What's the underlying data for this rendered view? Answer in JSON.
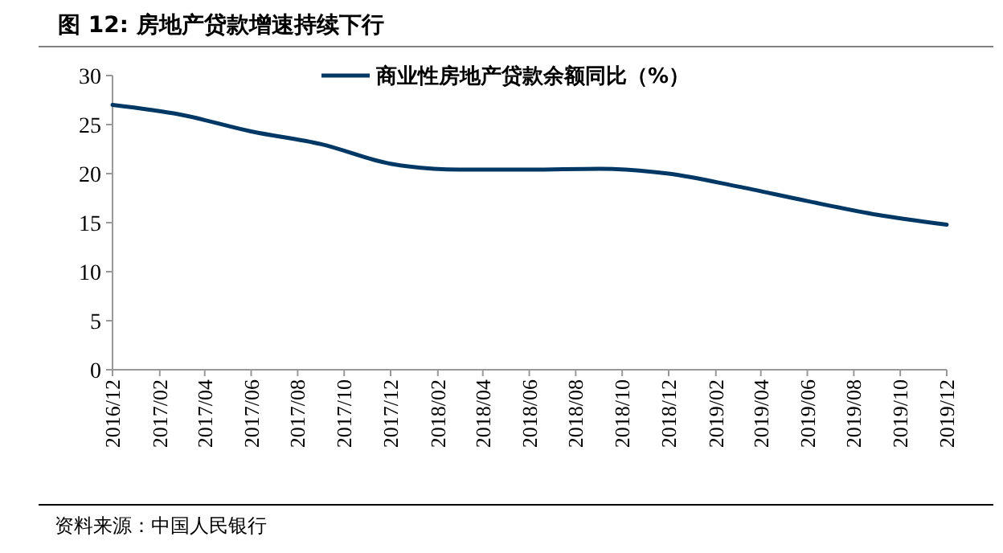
{
  "chart_data": {
    "type": "line",
    "title": "图 12:  房地产贷款增速持续下行",
    "annotations": [
      "资料来源：中国人民银行"
    ],
    "x": [
      "2016-12",
      "2017-03",
      "2017-06",
      "2017-09",
      "2017-12",
      "2018-03",
      "2018-06",
      "2018-09",
      "2018-12",
      "2019-03",
      "2019-06",
      "2019-09",
      "2019-12"
    ],
    "series": [
      {
        "name": "商业性房地产贷款余额同比（%）",
        "color": "#003865",
        "values": [
          27.0,
          26.0,
          24.3,
          23.0,
          21.0,
          20.4,
          20.4,
          20.5,
          20.0,
          18.7,
          17.2,
          15.8,
          14.8
        ]
      }
    ],
    "xlim": [
      "2016-12",
      "2019-12"
    ],
    "xticks": [
      {
        "value": "2016-12",
        "label": "2016/12"
      },
      {
        "value": "2017-02",
        "label": "2017/02"
      },
      {
        "value": "2017-04",
        "label": "2017/04"
      },
      {
        "value": "2017-06",
        "label": "2017/06"
      },
      {
        "value": "2017-08",
        "label": "2017/08"
      },
      {
        "value": "2017-10",
        "label": "2017/10"
      },
      {
        "value": "2017-12",
        "label": "2017/12"
      },
      {
        "value": "2018-02",
        "label": "2018/02"
      },
      {
        "value": "2018-04",
        "label": "2018/04"
      },
      {
        "value": "2018-06",
        "label": "2018/06"
      },
      {
        "value": "2018-08",
        "label": "2018/08"
      },
      {
        "value": "2018-10",
        "label": "2018/10"
      },
      {
        "value": "2018-12",
        "label": "2018/12"
      },
      {
        "value": "2019-02",
        "label": "2019/02"
      },
      {
        "value": "2019-04",
        "label": "2019/04"
      },
      {
        "value": "2019-06",
        "label": "2019/06"
      },
      {
        "value": "2019-08",
        "label": "2019/08"
      },
      {
        "value": "2019-10",
        "label": "2019/10"
      },
      {
        "value": "2019-12",
        "label": "2019/12"
      }
    ],
    "ylim": [
      0,
      30
    ],
    "yticks": [
      0,
      5,
      10,
      15,
      20,
      25,
      30
    ],
    "grid": false,
    "legend": "top",
    "marker": "none",
    "line_style": "solid"
  }
}
